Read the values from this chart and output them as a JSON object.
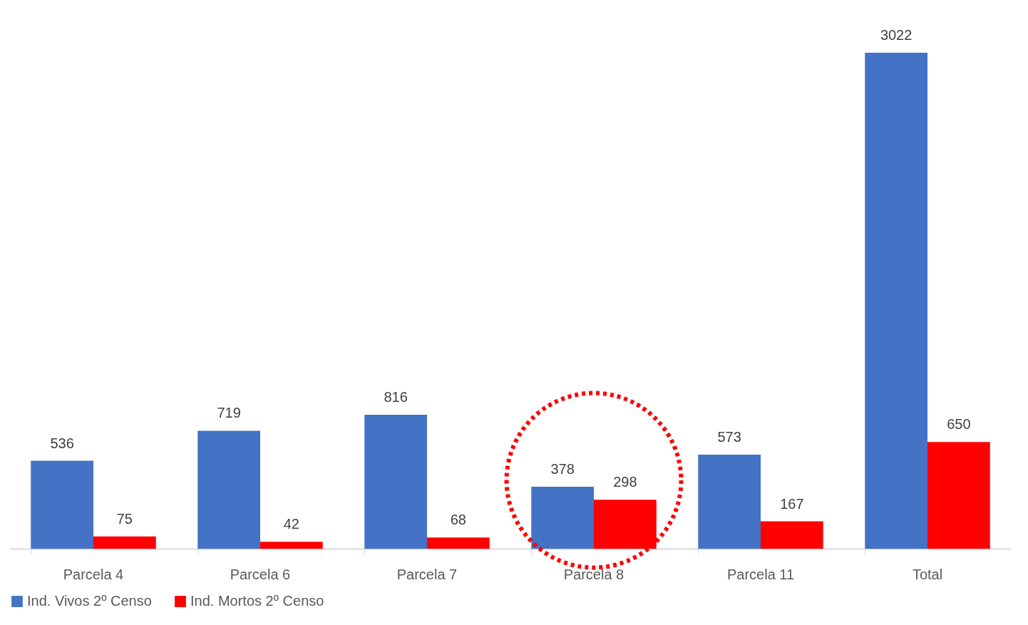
{
  "chart_data": {
    "type": "bar",
    "categories": [
      "Parcela 4",
      "Parcela 6",
      "Parcela 7",
      "Parcela 8",
      "Parcela 11",
      "Total"
    ],
    "series": [
      {
        "name": "Ind. Vivos 2º Censo",
        "color": "#4472c4",
        "values": [
          536,
          719,
          816,
          378,
          573,
          3022
        ]
      },
      {
        "name": "Ind. Mortos 2º Censo",
        "color": "#ff0000",
        "values": [
          75,
          42,
          68,
          298,
          167,
          650
        ]
      }
    ],
    "data_labels": true,
    "legend": "bottom",
    "grid": false
  }
}
